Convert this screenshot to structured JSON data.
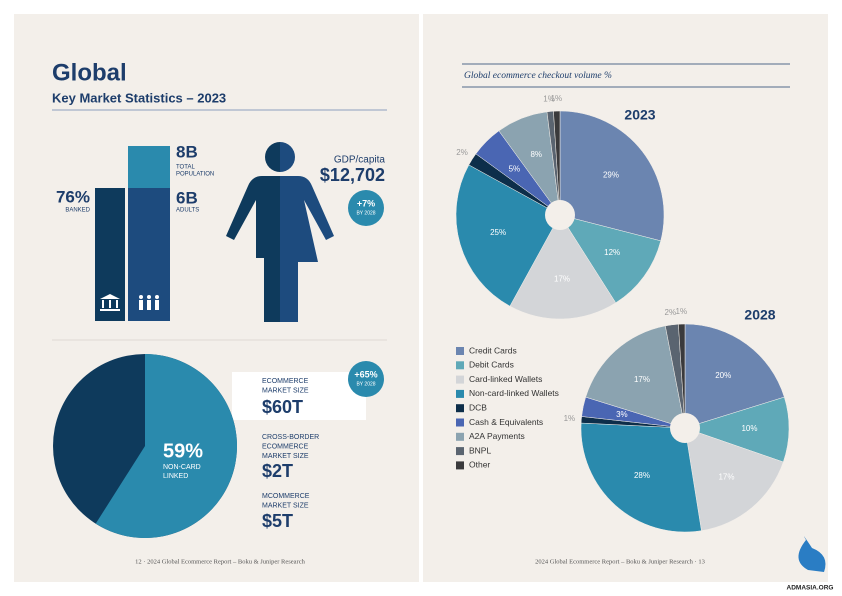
{
  "left_page": {
    "title": "Global",
    "subtitle": "Key Market Statistics – 2023",
    "banked": {
      "value": "76%",
      "label": [
        "BANKED"
      ]
    },
    "population": {
      "value": "8B",
      "label": [
        "TOTAL",
        "POPULATION"
      ]
    },
    "adults": {
      "value": "6B",
      "label": [
        "ADULTS"
      ]
    },
    "gdp": {
      "label": "GDP/capita",
      "value": "$12,702",
      "growth": "+7%",
      "growth_note": "BY 2028"
    },
    "non_card": {
      "share": 59,
      "share_label": "59%",
      "label": [
        "NON-CARD",
        "LINKED"
      ]
    },
    "market": [
      {
        "label": [
          "ECOMMERCE",
          "MARKET SIZE"
        ],
        "value": "$60T",
        "growth": "+65%",
        "growth_note": "BY 2028"
      },
      {
        "label": [
          "CROSS-BORDER",
          "ECOMMERCE",
          "MARKET SIZE"
        ],
        "value": "$2T"
      },
      {
        "label": [
          "MCOMMERCE",
          "MARKET SIZE"
        ],
        "value": "$5T"
      }
    ],
    "footer": "12 · 2024 Global Ecommerce Report – Boku & Juniper Research"
  },
  "right_page": {
    "title": "Global ecommerce checkout volume %",
    "categories": [
      "Credit Cards",
      "Debit Cards",
      "Card-linked Wallets",
      "Non-card-linked Wallets",
      "DCB",
      "Cash & Equivalents",
      "A2A Payments",
      "BNPL",
      "Other"
    ],
    "colors": [
      "#6b85b0",
      "#5fa9b8",
      "#d3d5d8",
      "#2a8aad",
      "#0d2e4a",
      "#4a66b3",
      "#8ba3b0",
      "#5a6470",
      "#3a3a3c"
    ],
    "pies": [
      {
        "year": "2023",
        "values": [
          29,
          12,
          17,
          25,
          2,
          5,
          8,
          1,
          1
        ],
        "value_labels": [
          "29%",
          "12%",
          "17%",
          "25%",
          "2%",
          "5%",
          "8%",
          "1%",
          "1%"
        ]
      },
      {
        "year": "2028",
        "values": [
          20,
          10,
          17,
          28,
          1,
          3,
          17,
          2,
          1
        ],
        "value_labels": [
          "20%",
          "10%",
          "17%",
          "28%",
          "1%",
          "3%",
          "17%",
          "2%",
          "1%"
        ]
      }
    ],
    "footer": "2024 Global Ecommerce Report – Boku & Juniper Research · 13"
  },
  "watermark": "ADMASIA.ORG"
}
